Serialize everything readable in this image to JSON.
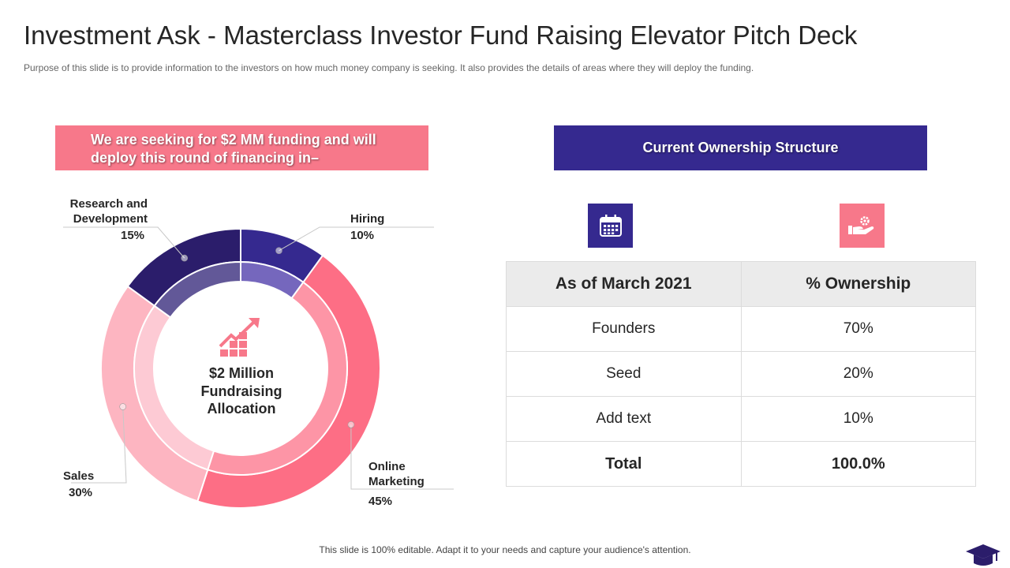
{
  "header": {
    "title": "Investment Ask - Masterclass Investor Fund Raising Elevator Pitch Deck",
    "subtitle": "Purpose of this slide is to provide  information to the investors on how much money company is seeking. It also provides  the details of areas where they will deploy the funding."
  },
  "left_banner": {
    "text": "We are seeking for $2 MM funding and will deploy this round of financing in–"
  },
  "right_banner": {
    "text": "Current Ownership Structure"
  },
  "chart_data": {
    "type": "pie",
    "title": "$2 Million Fundraising Allocation",
    "center_lines": [
      "$2 Million",
      "Fundraising",
      "Allocation"
    ],
    "categories": [
      "Hiring",
      "Online Marketing",
      "Sales",
      "Research and Development"
    ],
    "values": [
      10,
      45,
      30,
      15
    ],
    "value_labels": [
      "10%",
      "45%",
      "30%",
      "15%"
    ],
    "label_lines": [
      [
        "Hiring"
      ],
      [
        "Online",
        "Marketing"
      ],
      [
        "Sales"
      ],
      [
        "Research and",
        "Development"
      ]
    ],
    "colors": [
      "#35298f",
      "#fd6e85",
      "#fdb5c1",
      "#2b1d6b"
    ],
    "inner_colors": [
      "#7567bd",
      "#fd95a6",
      "#fdcad4",
      "#625898"
    ]
  },
  "icons": {
    "left": "calendar-icon",
    "right": "hand-gear-icon",
    "chart": "growth-chart-icon",
    "logo": "graduation-cap-icon"
  },
  "table": {
    "headers": [
      "As of March 2021",
      "% Ownership"
    ],
    "rows": [
      [
        "Founders",
        "70%"
      ],
      [
        "Seed",
        "20%"
      ],
      [
        "Add text",
        "10%"
      ]
    ],
    "total": [
      "Total",
      "100.0%"
    ]
  },
  "footer": {
    "text": "This slide is 100% editable. Adapt it to your needs and capture your audience's attention."
  },
  "colors": {
    "pink": "#f7788a",
    "purple": "#35298f",
    "dark_purple": "#2b1d6b"
  }
}
